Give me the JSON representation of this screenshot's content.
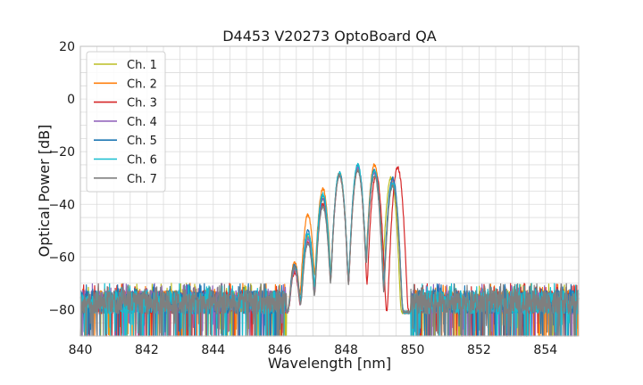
{
  "chart_data": {
    "type": "line",
    "title": "D4453 V20273 OptoBoard QA",
    "xlabel": "Wavelength [nm]",
    "ylabel": "Optical Power [dB]",
    "xlim": [
      840,
      855
    ],
    "ylim": [
      -90,
      20
    ],
    "xticks": [
      840,
      842,
      844,
      846,
      848,
      850,
      852,
      854
    ],
    "yticks": [
      20,
      0,
      -20,
      -40,
      -60,
      -80
    ],
    "grid": true,
    "legend_position": "top-left",
    "noise_floor_db": -77,
    "series": [
      {
        "name": "Ch. 1",
        "color": "#bcbd22",
        "peaks": [
          {
            "x": 846.45,
            "y": -64
          },
          {
            "x": 846.85,
            "y": -52
          },
          {
            "x": 847.3,
            "y": -38
          },
          {
            "x": 847.8,
            "y": -29
          },
          {
            "x": 848.35,
            "y": -26
          },
          {
            "x": 848.85,
            "y": -27
          },
          {
            "x": 849.35,
            "y": -30
          }
        ]
      },
      {
        "name": "Ch. 2",
        "color": "#ff7f0e",
        "peaks": [
          {
            "x": 846.45,
            "y": -62
          },
          {
            "x": 846.85,
            "y": -44
          },
          {
            "x": 847.3,
            "y": -34
          },
          {
            "x": 847.8,
            "y": -28
          },
          {
            "x": 848.35,
            "y": -26
          },
          {
            "x": 848.85,
            "y": -25
          },
          {
            "x": 849.4,
            "y": -31
          }
        ]
      },
      {
        "name": "Ch. 3",
        "color": "#d62728",
        "peaks": [
          {
            "x": 846.45,
            "y": -66
          },
          {
            "x": 846.85,
            "y": -54
          },
          {
            "x": 847.3,
            "y": -40
          },
          {
            "x": 847.8,
            "y": -29
          },
          {
            "x": 848.35,
            "y": -27
          },
          {
            "x": 848.9,
            "y": -29
          },
          {
            "x": 849.55,
            "y": -26
          }
        ]
      },
      {
        "name": "Ch. 4",
        "color": "#9467bd",
        "peaks": [
          {
            "x": 846.45,
            "y": -65
          },
          {
            "x": 846.85,
            "y": -53
          },
          {
            "x": 847.3,
            "y": -38
          },
          {
            "x": 847.8,
            "y": -29
          },
          {
            "x": 848.35,
            "y": -26
          },
          {
            "x": 848.85,
            "y": -28
          },
          {
            "x": 849.4,
            "y": -31
          }
        ]
      },
      {
        "name": "Ch. 5",
        "color": "#1f77b4",
        "peaks": [
          {
            "x": 846.45,
            "y": -63
          },
          {
            "x": 846.85,
            "y": -50
          },
          {
            "x": 847.3,
            "y": -37
          },
          {
            "x": 847.8,
            "y": -28
          },
          {
            "x": 848.35,
            "y": -25
          },
          {
            "x": 848.85,
            "y": -27
          },
          {
            "x": 849.4,
            "y": -30
          }
        ]
      },
      {
        "name": "Ch. 6",
        "color": "#17becf",
        "peaks": [
          {
            "x": 846.45,
            "y": -64
          },
          {
            "x": 846.85,
            "y": -51
          },
          {
            "x": 847.3,
            "y": -36
          },
          {
            "x": 847.8,
            "y": -28
          },
          {
            "x": 848.35,
            "y": -25
          },
          {
            "x": 848.85,
            "y": -27
          },
          {
            "x": 849.4,
            "y": -32
          }
        ]
      },
      {
        "name": "Ch. 7",
        "color": "#7f7f7f",
        "peaks": [
          {
            "x": 846.45,
            "y": -64
          },
          {
            "x": 846.85,
            "y": -55
          },
          {
            "x": 847.3,
            "y": -41
          },
          {
            "x": 847.8,
            "y": -29
          },
          {
            "x": 848.35,
            "y": -27
          },
          {
            "x": 848.85,
            "y": -29
          },
          {
            "x": 849.4,
            "y": -33
          }
        ]
      }
    ]
  }
}
